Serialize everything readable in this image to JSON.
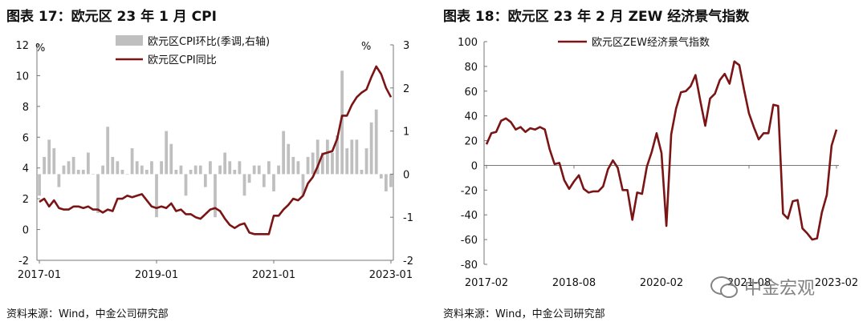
{
  "figures": [
    {
      "title": "图表 17：欧元区 23 年 1 月 CPI",
      "source": "资料来源：Wind，中金公司研究部"
    },
    {
      "title": "图表 18：欧元区 23 年 2 月 ZEW 经济景气指数",
      "source": "资料来源：Wind，中金公司研究部"
    }
  ],
  "watermark": {
    "text": "中金宏观"
  },
  "chart_data": [
    {
      "type": "bar+line",
      "title": "图表 17：欧元区 23 年 1 月 CPI",
      "left_unit": "%",
      "right_unit": "%",
      "ylim_left": [
        -2,
        12
      ],
      "yticks_left": [
        -2,
        0,
        2,
        4,
        6,
        8,
        10,
        12
      ],
      "ylim_right": [
        -2,
        3
      ],
      "yticks_right": [
        -2,
        -1,
        0,
        1,
        2,
        3
      ],
      "x_ticks": [
        "2017-01",
        "2019-01",
        "2021-01",
        "2023-01"
      ],
      "x": [
        "2017-01",
        "2017-02",
        "2017-03",
        "2017-04",
        "2017-05",
        "2017-06",
        "2017-07",
        "2017-08",
        "2017-09",
        "2017-10",
        "2017-11",
        "2017-12",
        "2018-01",
        "2018-02",
        "2018-03",
        "2018-04",
        "2018-05",
        "2018-06",
        "2018-07",
        "2018-08",
        "2018-09",
        "2018-10",
        "2018-11",
        "2018-12",
        "2019-01",
        "2019-02",
        "2019-03",
        "2019-04",
        "2019-05",
        "2019-06",
        "2019-07",
        "2019-08",
        "2019-09",
        "2019-10",
        "2019-11",
        "2019-12",
        "2020-01",
        "2020-02",
        "2020-03",
        "2020-04",
        "2020-05",
        "2020-06",
        "2020-07",
        "2020-08",
        "2020-09",
        "2020-10",
        "2020-11",
        "2020-12",
        "2021-01",
        "2021-02",
        "2021-03",
        "2021-04",
        "2021-05",
        "2021-06",
        "2021-07",
        "2021-08",
        "2021-09",
        "2021-10",
        "2021-11",
        "2021-12",
        "2022-01",
        "2022-02",
        "2022-03",
        "2022-04",
        "2022-05",
        "2022-06",
        "2022-07",
        "2022-08",
        "2022-09",
        "2022-10",
        "2022-11",
        "2022-12",
        "2023-01"
      ],
      "series": [
        {
          "name": "欧元区CPI环比(季调,右轴)",
          "axis": "right",
          "kind": "bar",
          "color": "#bfbfbf",
          "values": [
            -0.5,
            0.4,
            0.8,
            0.6,
            -0.3,
            0.2,
            0.3,
            0.4,
            0.1,
            0.1,
            0.5,
            0.0,
            -0.9,
            0.2,
            1.1,
            0.4,
            0.3,
            0.1,
            0.0,
            0.6,
            0.3,
            0.2,
            0.1,
            0.3,
            -1.0,
            0.3,
            1.0,
            0.7,
            0.1,
            0.2,
            -0.5,
            0.1,
            0.2,
            0.2,
            -0.3,
            0.3,
            -1.0,
            0.2,
            0.5,
            0.3,
            0.1,
            0.3,
            -0.5,
            -0.2,
            0.2,
            0.2,
            -0.3,
            0.3,
            -0.4,
            0.2,
            1.0,
            0.7,
            0.4,
            0.3,
            -0.5,
            0.4,
            0.5,
            0.8,
            0.5,
            0.8,
            0.5,
            0.9,
            2.4,
            0.6,
            0.8,
            0.8,
            0.1,
            0.6,
            1.2,
            1.5,
            -0.1,
            -0.4,
            -0.3
          ]
        },
        {
          "name": "欧元区CPI同比",
          "axis": "left",
          "kind": "line",
          "color": "#7b1414",
          "values": [
            1.8,
            2.0,
            1.5,
            1.9,
            1.4,
            1.3,
            1.3,
            1.5,
            1.5,
            1.4,
            1.5,
            1.3,
            1.3,
            1.1,
            1.3,
            1.2,
            2.0,
            2.0,
            2.2,
            2.1,
            2.2,
            2.3,
            1.9,
            1.5,
            1.4,
            1.5,
            1.4,
            1.7,
            1.2,
            1.3,
            1.0,
            1.0,
            0.8,
            0.7,
            1.0,
            1.3,
            1.4,
            1.2,
            0.7,
            0.3,
            0.1,
            0.3,
            0.4,
            -0.2,
            -0.3,
            -0.3,
            -0.3,
            -0.3,
            0.9,
            0.9,
            1.3,
            1.6,
            2.0,
            1.9,
            2.2,
            3.0,
            3.4,
            4.1,
            4.9,
            5.0,
            5.1,
            5.9,
            7.4,
            7.4,
            8.1,
            8.6,
            8.9,
            9.1,
            9.9,
            10.6,
            10.1,
            9.2,
            8.6
          ]
        }
      ],
      "legend_position": "top-center"
    },
    {
      "type": "line",
      "title": "图表 18：欧元区 23 年 2 月 ZEW 经济景气指数",
      "ylim": [
        -80,
        100
      ],
      "yticks": [
        -80,
        -60,
        -40,
        -20,
        0,
        20,
        40,
        60,
        80,
        100
      ],
      "x_ticks": [
        "2017-02",
        "2018-08",
        "2020-02",
        "2021-08",
        "2023-02"
      ],
      "x": [
        "2017-02",
        "2017-03",
        "2017-04",
        "2017-05",
        "2017-06",
        "2017-07",
        "2017-08",
        "2017-09",
        "2017-10",
        "2017-11",
        "2017-12",
        "2018-01",
        "2018-02",
        "2018-03",
        "2018-04",
        "2018-05",
        "2018-06",
        "2018-07",
        "2018-08",
        "2018-09",
        "2018-10",
        "2018-11",
        "2018-12",
        "2019-01",
        "2019-02",
        "2019-03",
        "2019-04",
        "2019-05",
        "2019-06",
        "2019-07",
        "2019-08",
        "2019-09",
        "2019-10",
        "2019-11",
        "2019-12",
        "2020-01",
        "2020-02",
        "2020-03",
        "2020-04",
        "2020-05",
        "2020-06",
        "2020-07",
        "2020-08",
        "2020-09",
        "2020-10",
        "2020-11",
        "2020-12",
        "2021-01",
        "2021-02",
        "2021-03",
        "2021-04",
        "2021-05",
        "2021-06",
        "2021-07",
        "2021-08",
        "2021-09",
        "2021-10",
        "2021-11",
        "2021-12",
        "2022-01",
        "2022-02",
        "2022-03",
        "2022-04",
        "2022-05",
        "2022-06",
        "2022-07",
        "2022-08",
        "2022-09",
        "2022-10",
        "2022-11",
        "2022-12",
        "2023-01",
        "2023-02"
      ],
      "series": [
        {
          "name": "欧元区ZEW经济景气指数",
          "color": "#7b1414",
          "values": [
            17,
            26,
            27,
            36,
            38,
            35,
            29,
            31,
            27,
            30,
            29,
            31,
            29,
            13,
            1,
            2,
            -12,
            -19,
            -13,
            -8,
            -19,
            -22,
            -21,
            -21,
            -17,
            -3,
            4,
            -2,
            -20,
            -20,
            -44,
            -22,
            -23,
            -1,
            11,
            26,
            10,
            -49,
            25,
            46,
            59,
            60,
            64,
            73,
            52,
            32,
            54,
            58,
            69,
            74,
            66,
            84,
            81,
            61,
            42,
            31,
            21,
            26,
            26,
            49,
            48,
            -39,
            -43,
            -29,
            -28,
            -51,
            -55,
            -60,
            -59,
            -38,
            -24,
            16,
            29
          ]
        }
      ],
      "legend_position": "top-center"
    }
  ]
}
